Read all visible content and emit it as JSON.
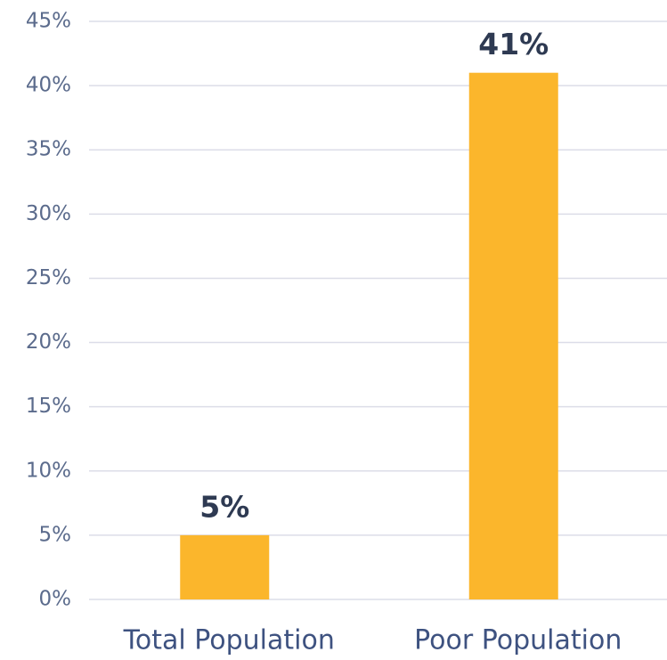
{
  "chart_data": {
    "type": "bar",
    "categories": [
      "Total Population",
      "Poor Population"
    ],
    "values": [
      5,
      41
    ],
    "value_labels": [
      "5%",
      "41%"
    ],
    "color": "#fbb62c",
    "ylim": [
      0,
      45
    ],
    "yticks": [
      {
        "value": 0,
        "label": "0%"
      },
      {
        "value": 5,
        "label": "5%"
      },
      {
        "value": 10,
        "label": "10%"
      },
      {
        "value": 15,
        "label": "15%"
      },
      {
        "value": 20,
        "label": "20%"
      },
      {
        "value": 25,
        "label": "25%"
      },
      {
        "value": 30,
        "label": "30%"
      },
      {
        "value": 35,
        "label": "35%"
      },
      {
        "value": 40,
        "label": "40%"
      },
      {
        "value": 45,
        "label": "45%"
      }
    ],
    "grid": true
  }
}
